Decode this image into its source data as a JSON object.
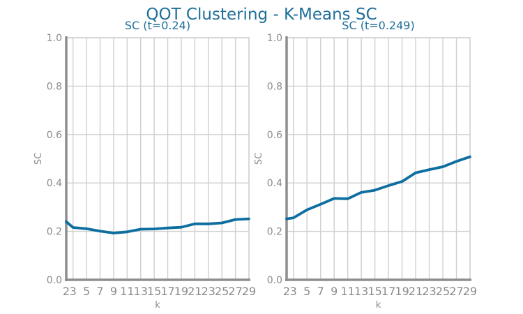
{
  "figure": {
    "title": "QOT Clustering - K-Means SC",
    "colors": {
      "line": "#0e6ea0",
      "title": "#1f6f99",
      "tick": "#8a8a8a",
      "grid": "#cfcfcf",
      "spine": "#8e8e8e"
    }
  },
  "chart_data": [
    {
      "type": "line",
      "title": "SC (t=0.24)",
      "xlabel": "k",
      "ylabel": "SC",
      "xlim": [
        2,
        29
      ],
      "ylim": [
        0,
        1.0
      ],
      "xticks": [
        2,
        3,
        5,
        7,
        9,
        11,
        13,
        15,
        17,
        19,
        21,
        23,
        25,
        27,
        29
      ],
      "yticks": [
        0.0,
        0.2,
        0.4,
        0.6,
        0.8,
        1.0
      ],
      "ytick_labels": [
        "0.0",
        "0.2",
        "0.4",
        "0.6",
        "0.8",
        "1.0"
      ],
      "grid": true,
      "x": [
        2,
        3,
        5,
        7,
        9,
        11,
        13,
        15,
        17,
        19,
        21,
        23,
        25,
        27,
        29
      ],
      "values": [
        0.24,
        0.216,
        0.211,
        0.201,
        0.193,
        0.198,
        0.209,
        0.21,
        0.214,
        0.217,
        0.231,
        0.231,
        0.235,
        0.249,
        0.252
      ]
    },
    {
      "type": "line",
      "title": "SC (t=0.249)",
      "xlabel": "k",
      "ylabel": "SC",
      "xlim": [
        2,
        29
      ],
      "ylim": [
        0,
        1.0
      ],
      "xticks": [
        2,
        3,
        5,
        7,
        9,
        11,
        13,
        15,
        17,
        19,
        21,
        23,
        25,
        27,
        29
      ],
      "yticks": [
        0.0,
        0.2,
        0.4,
        0.6,
        0.8,
        1.0
      ],
      "ytick_labels": [
        "0.0",
        "0.2",
        "0.4",
        "0.6",
        "0.8",
        "1.0"
      ],
      "grid": true,
      "x": [
        2,
        3,
        5,
        7,
        9,
        11,
        13,
        15,
        17,
        19,
        21,
        23,
        25,
        27,
        29
      ],
      "values": [
        0.252,
        0.256,
        0.289,
        0.312,
        0.336,
        0.335,
        0.361,
        0.37,
        0.389,
        0.406,
        0.442,
        0.455,
        0.467,
        0.489,
        0.508
      ]
    }
  ]
}
